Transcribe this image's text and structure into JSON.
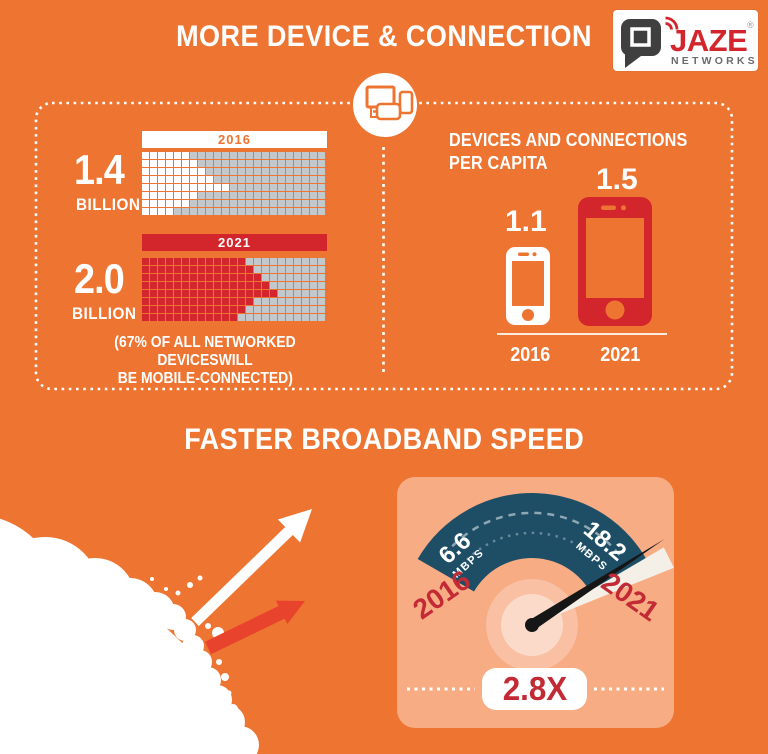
{
  "colors": {
    "background": "#EE7431",
    "red": "#D2262C",
    "crimson": "#C22B36",
    "navy": "#1E4D66",
    "gray_square": "#C3C8CC",
    "panel_peach": "#F8AC84",
    "soft_circle": "#F9C0A4",
    "inner_circle": "#FCDACA",
    "logo_dark": "#3F3F3F",
    "logo_gray": "#6B6B6B",
    "arrow_red": "#E8432C",
    "needle_black": "#161616",
    "wedge_white": "#F4F0E8"
  },
  "header": {
    "title": "MORE DEVICE & CONNECTION",
    "logo": {
      "name": "JAZE",
      "subtitle": "NETWORKS",
      "registered": "®"
    }
  },
  "devices_box": {
    "mobile_growth": {
      "y2016": {
        "year": "2016",
        "value": "1.4",
        "unit": "BILLION"
      },
      "y2021": {
        "year": "2021",
        "value": "2.0",
        "unit": "BILLION"
      },
      "caption_line1": "(67% OF ALL NETWORKED DEVICESWILL",
      "caption_line2": "BE MOBILE-CONNECTED)"
    },
    "per_capita": {
      "title_line1": "DEVICES AND CONNECTIONS",
      "title_line2": "PER CAPITA",
      "y2016": {
        "value": "1.1",
        "year": "2016"
      },
      "y2021": {
        "value": "1.5",
        "year": "2021"
      }
    }
  },
  "speed_section": {
    "title": "FASTER BROADBAND SPEED",
    "gauge": {
      "left": {
        "value": "6.6",
        "unit": "MBPS",
        "year": "2016"
      },
      "right": {
        "value": "18.2",
        "unit": "MBPS",
        "year": "2021"
      },
      "multiplier": "2.8X"
    }
  },
  "waffle_charts": [
    {
      "target": "grid-2016",
      "cols": 23,
      "rows": 8,
      "filled_per_row": [
        6,
        7,
        8,
        9,
        11,
        7,
        6,
        4
      ],
      "fill": "#FFFFFF",
      "empty": "#C3C8CC"
    },
    {
      "target": "grid-2021",
      "cols": 23,
      "rows": 8,
      "filled_per_row": [
        13,
        14,
        15,
        16,
        17,
        14,
        13,
        12
      ],
      "fill": "#D2262C",
      "empty": "#C3C8CC"
    }
  ],
  "chart_data": [
    {
      "type": "bar",
      "title": "Mobile devices growth (pictograph waffle)",
      "categories": [
        "2016",
        "2021"
      ],
      "values": [
        1.4,
        2.0
      ],
      "unit": "billion",
      "annotation": "(67% of all networked devices will be mobile-connected)"
    },
    {
      "type": "bar",
      "title": "Devices and connections per capita",
      "categories": [
        "2016",
        "2021"
      ],
      "values": [
        1.1,
        1.5
      ]
    },
    {
      "type": "gauge",
      "title": "Faster broadband speed",
      "categories": [
        "2016",
        "2021"
      ],
      "values": [
        6.6,
        18.2
      ],
      "unit": "Mbps",
      "multiplier": "2.8X"
    }
  ]
}
